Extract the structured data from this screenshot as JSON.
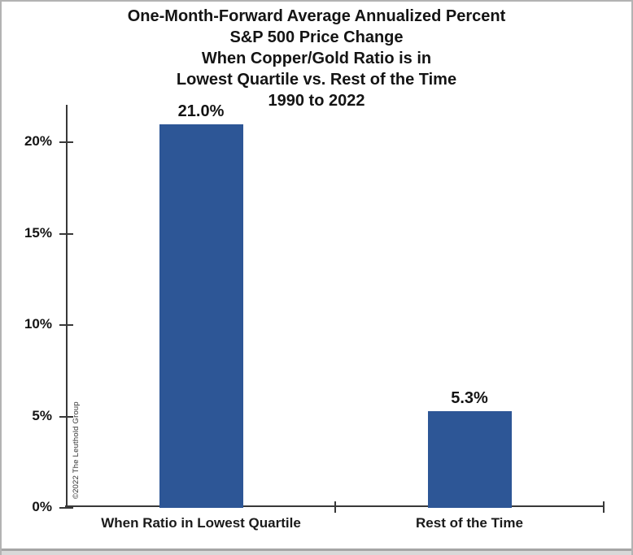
{
  "watermark": "©2022 The Leuthold Group",
  "chart_data": {
    "type": "bar",
    "title_lines": [
      "One-Month-Forward Average Annualized Percent",
      "S&P 500 Price Change",
      "When Copper/Gold Ratio is in",
      "Lowest Quartile vs. Rest of the Time",
      "1990 to 2022"
    ],
    "categories": [
      "When Ratio in Lowest Quartile",
      "Rest of the Time"
    ],
    "values": [
      21.0,
      5.3
    ],
    "value_labels": [
      "21.0%",
      "5.3%"
    ],
    "y_ticks": [
      {
        "value": 0,
        "label": "0%"
      },
      {
        "value": 5,
        "label": "5%"
      },
      {
        "value": 10,
        "label": "10%"
      },
      {
        "value": 15,
        "label": "15%"
      },
      {
        "value": 20,
        "label": "20%"
      }
    ],
    "ylim": [
      0,
      22
    ],
    "xlabel": "",
    "ylabel": "",
    "grid": false,
    "legend": false,
    "bar_color": "#2d5696",
    "axis_color": "#383838",
    "text_color": "#141414",
    "background_color": "#ffffff"
  }
}
